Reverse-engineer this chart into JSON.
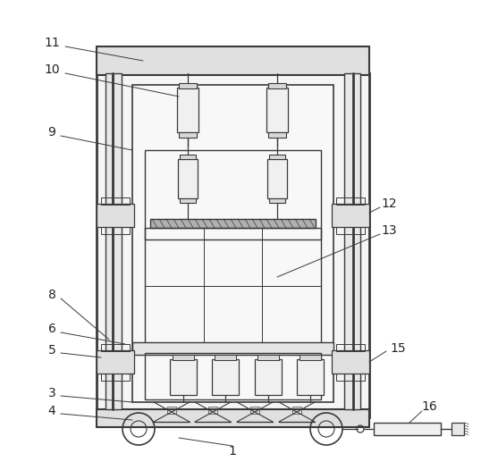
{
  "line_color": "#3a3a3a",
  "bg_color": "#ffffff",
  "fig_width": 5.38,
  "fig_height": 5.17,
  "dpi": 100,
  "label_fontsize": 10
}
